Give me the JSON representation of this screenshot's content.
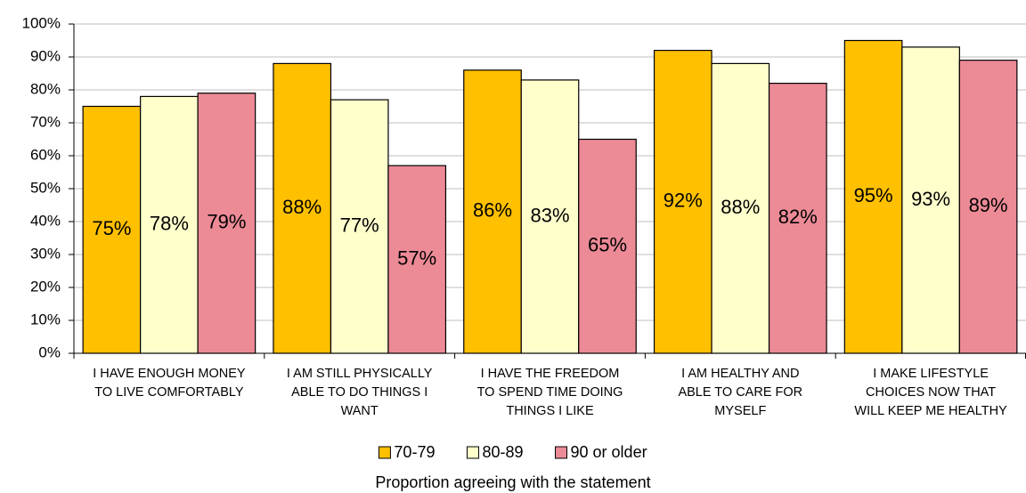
{
  "chart_data": {
    "type": "bar",
    "categories": [
      [
        "I HAVE ENOUGH MONEY",
        "TO LIVE COMFORTABLY"
      ],
      [
        "I AM STILL PHYSICALLY",
        "ABLE TO DO THINGS I",
        "WANT"
      ],
      [
        "I HAVE THE FREEDOM",
        "TO SPEND TIME DOING",
        "THINGS I LIKE"
      ],
      [
        "I AM HEALTHY AND",
        "ABLE TO CARE FOR",
        "MYSELF"
      ],
      [
        "I MAKE LIFESTYLE",
        "CHOICES NOW THAT",
        "WILL KEEP ME HEALTHY"
      ]
    ],
    "series": [
      {
        "name": "70-79",
        "color": "#ffc000",
        "values": [
          75,
          88,
          86,
          92,
          95
        ],
        "value_labels": [
          "75%",
          "88%",
          "86%",
          "92%",
          "95%"
        ]
      },
      {
        "name": "80-89",
        "color": "#ffffcc",
        "values": [
          78,
          77,
          83,
          88,
          93
        ],
        "value_labels": [
          "78%",
          "77%",
          "83%",
          "88%",
          "93%"
        ]
      },
      {
        "name": "90 or older",
        "color": "#ec8a96",
        "values": [
          79,
          57,
          65,
          82,
          89
        ],
        "value_labels": [
          "79%",
          "57%",
          "65%",
          "82%",
          "89%"
        ]
      }
    ],
    "xlabel": "Proportion agreeing with the statement",
    "ylim": [
      0,
      100
    ],
    "yticks": [
      {
        "value": 0,
        "label": "0%"
      },
      {
        "value": 10,
        "label": "10%"
      },
      {
        "value": 20,
        "label": "20%"
      },
      {
        "value": 30,
        "label": "30%"
      },
      {
        "value": 40,
        "label": "40%"
      },
      {
        "value": 50,
        "label": "50%"
      },
      {
        "value": 60,
        "label": "60%"
      },
      {
        "value": 70,
        "label": "70%"
      },
      {
        "value": 80,
        "label": "80%"
      },
      {
        "value": 90,
        "label": "90%"
      },
      {
        "value": 100,
        "label": "100%"
      }
    ],
    "grid": true,
    "legend": "bottom"
  }
}
